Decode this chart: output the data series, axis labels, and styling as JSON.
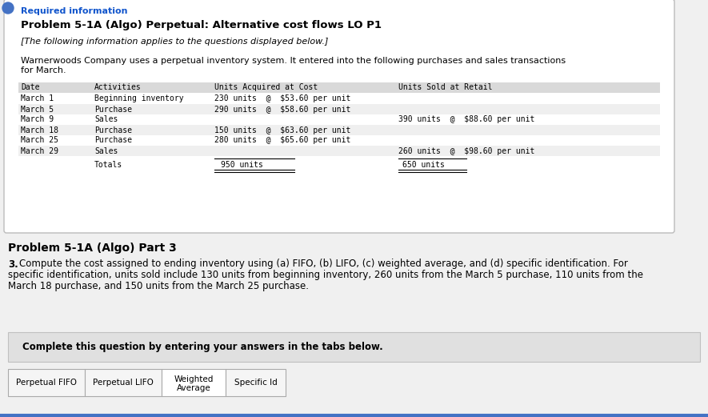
{
  "required_info_text": "Required information",
  "title": "Problem 5-1A (Algo) Perpetual: Alternative cost flows LO P1",
  "subtitle": "[The following information applies to the questions displayed below.]",
  "intro_line1": "Warnerwoods Company uses a perpetual inventory system. It entered into the following purchases and sales transactions",
  "intro_line2": "for March.",
  "table_headers": [
    "Date",
    "Activities",
    "Units Acquired at Cost",
    "Units Sold at Retail"
  ],
  "table_rows": [
    [
      "March 1",
      "Beginning inventory",
      "230 units  é  $53.60 per unit",
      ""
    ],
    [
      "March 5",
      "Purchase",
      "290 units  é  $58.60 per unit",
      ""
    ],
    [
      "March 9",
      "Sales",
      "",
      "390 units  é  $88.60 per unit"
    ],
    [
      "March 18",
      "Purchase",
      "150 units  é  $63.60 per unit",
      ""
    ],
    [
      "March 25",
      "Purchase",
      "280 units  é  $65.60 per unit",
      ""
    ],
    [
      "March 29",
      "Sales",
      "",
      "260 units  é  $98.60 per unit"
    ]
  ],
  "totals_label": "Totals",
  "total_acquired": "950 units",
  "total_sold": "650 units",
  "part3_title": "Problem 5-1A (Algo) Part 3",
  "part3_number": "3.",
  "part3_line1": "Compute the cost assigned to ending inventory using (a) FIFO, (b) LIFO, (c) weighted average, and (d) specific identification. For",
  "part3_line2": "specific identification, units sold include 130 units from beginning inventory, 260 units from the March 5 purchase, 110 units from the",
  "part3_line3": "March 18 purchase, and 150 units from the March 25 purchase.",
  "complete_text": "Complete this question by entering your answers in the tabs below.",
  "tabs": [
    "Perpetual FIFO",
    "Perpetual LIFO",
    "Weighted\nAverage",
    "Specific Id"
  ],
  "required_info_color": "#1155CC",
  "header_bg_color": "#D9D9D9",
  "complete_bg_color": "#E0E0E0",
  "tab_active_bg": "#FFFFFF",
  "tab_inactive_bg": "#F5F5F5",
  "bg_color": "#F0F0F0",
  "box_bg": "#FFFFFF",
  "active_tab_index": 2,
  "row_colors": [
    "#FFFFFF",
    "#EFEFEF",
    "#FFFFFF",
    "#EFEFEF",
    "#FFFFFF",
    "#EFEFEF"
  ]
}
